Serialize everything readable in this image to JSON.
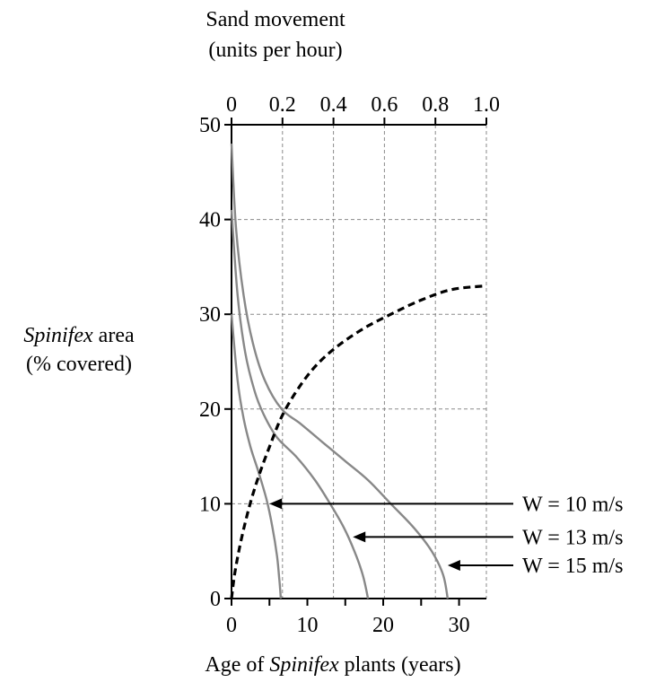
{
  "chart_data": {
    "type": "line",
    "top_axis": {
      "title_lines": [
        "Sand movement",
        "(units per hour)"
      ],
      "ticks": [
        "0",
        "0.2",
        "0.4",
        "0.6",
        "0.8",
        "1.0"
      ],
      "lim": [
        0,
        1.0
      ]
    },
    "left_axis": {
      "title_lines": [
        "Spinifex area",
        "(% covered)"
      ],
      "title_italic_word": "Spinifex",
      "ticks": [
        "0",
        "10",
        "20",
        "30",
        "40",
        "50"
      ],
      "lim": [
        0,
        50
      ]
    },
    "bottom_axis": {
      "title_parts": [
        "Age of ",
        "Spinifex",
        " plants (years)"
      ],
      "ticks": [
        "0",
        "10",
        "20",
        "30"
      ],
      "lim": [
        0,
        33.6
      ]
    },
    "grid": true,
    "series": [
      {
        "name": "W = 10 m/s",
        "color": "#888888",
        "points": [
          [
            0,
            30
          ],
          [
            0.8,
            23
          ],
          [
            1.6,
            19
          ],
          [
            2.5,
            16
          ],
          [
            3.5,
            13.5
          ],
          [
            4.6,
            10.5
          ],
          [
            5.4,
            7.5
          ],
          [
            6,
            4.5
          ],
          [
            6.3,
            2
          ],
          [
            6.5,
            0
          ]
        ]
      },
      {
        "name": "W = 13 m/s",
        "color": "#888888",
        "points": [
          [
            0,
            41
          ],
          [
            0.8,
            32
          ],
          [
            1.8,
            26
          ],
          [
            3,
            22
          ],
          [
            4.2,
            19.5
          ],
          [
            6,
            17
          ],
          [
            8.5,
            15
          ],
          [
            11,
            12.5
          ],
          [
            13,
            10
          ],
          [
            14.8,
            7.5
          ],
          [
            16.2,
            5
          ],
          [
            17.3,
            2.5
          ],
          [
            18,
            0
          ]
        ]
      },
      {
        "name": "W = 15 m/s",
        "color": "#888888",
        "points": [
          [
            0,
            48
          ],
          [
            0.6,
            39
          ],
          [
            1.6,
            32
          ],
          [
            2.8,
            27
          ],
          [
            4.4,
            23
          ],
          [
            6.6,
            20
          ],
          [
            9,
            18.5
          ],
          [
            12,
            16.5
          ],
          [
            15,
            14.5
          ],
          [
            18,
            12.5
          ],
          [
            21,
            10
          ],
          [
            24,
            7.5
          ],
          [
            26.4,
            5
          ],
          [
            27.9,
            2.5
          ],
          [
            28.5,
            0
          ]
        ]
      }
    ],
    "sand_movement_curve": {
      "style": "dashed",
      "points": [
        [
          0,
          0
        ],
        [
          0.5,
          3
        ],
        [
          1.5,
          7
        ],
        [
          3,
          11.5
        ],
        [
          5,
          16
        ],
        [
          7,
          19.8
        ],
        [
          10,
          23.5
        ],
        [
          13,
          26
        ],
        [
          17,
          28.3
        ],
        [
          21,
          30
        ],
        [
          25,
          31.5
        ],
        [
          29,
          32.6
        ],
        [
          33.6,
          33
        ]
      ]
    },
    "callouts": [
      {
        "label": "W = 10 m/s",
        "y": 10,
        "tip_x": 5
      },
      {
        "label": "W = 13 m/s",
        "y": 6.5,
        "tip_x": 16
      },
      {
        "label": "W = 15 m/s",
        "y": 3.5,
        "tip_x": 28.5
      }
    ]
  }
}
